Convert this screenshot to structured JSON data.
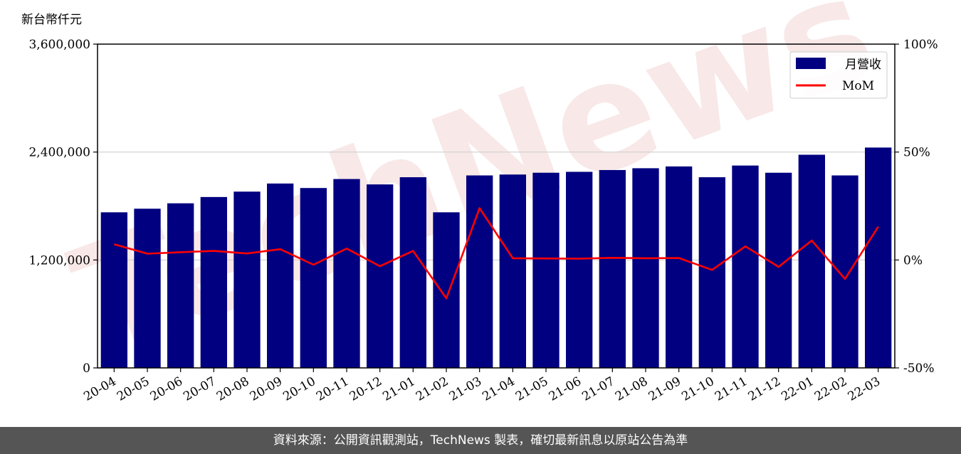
{
  "chart_data": {
    "type": "bar",
    "watermark": "TechNews",
    "y_unit_label": "新台幣仟元",
    "categories": [
      "20-04",
      "20-05",
      "20-06",
      "20-07",
      "20-08",
      "20-09",
      "20-10",
      "20-11",
      "20-12",
      "21-01",
      "21-02",
      "21-03",
      "21-04",
      "21-05",
      "21-06",
      "21-07",
      "21-08",
      "21-09",
      "21-10",
      "21-11",
      "21-12",
      "22-01",
      "22-02",
      "22-03"
    ],
    "series": [
      {
        "name": "月營收",
        "type": "bar",
        "axis": "left",
        "color": "#000080",
        "values": [
          1730000,
          1770000,
          1830000,
          1900000,
          1960000,
          2050000,
          2000000,
          2100000,
          2040000,
          2120000,
          1730000,
          2140000,
          2150000,
          2170000,
          2180000,
          2200000,
          2220000,
          2240000,
          2120000,
          2250000,
          2170000,
          2370000,
          2140000,
          2450000
        ]
      },
      {
        "name": "MoM",
        "type": "line",
        "axis": "right",
        "color": "#ff0000",
        "values": [
          7.3,
          2.9,
          3.6,
          4.2,
          3.0,
          5.0,
          -2.2,
          5.3,
          -2.9,
          4.2,
          -17.8,
          24.0,
          0.8,
          0.7,
          0.6,
          1.0,
          0.8,
          0.9,
          -4.6,
          6.3,
          -3.2,
          9.0,
          -8.8,
          15.4
        ]
      }
    ],
    "y_left": {
      "range": [
        0,
        3600000
      ],
      "ticks": [
        "0",
        "1,200,000",
        "2,400,000",
        "3,600,000"
      ]
    },
    "y_right": {
      "range": [
        -50,
        100
      ],
      "ticks": [
        "-50%",
        "0%",
        "50%",
        "100%"
      ]
    },
    "grid": "horizontal",
    "legend": "top-right"
  },
  "footer_text": "資料來源：公開資訊觀測站，TechNews 製表，確切最新訊息以原站公告為準"
}
